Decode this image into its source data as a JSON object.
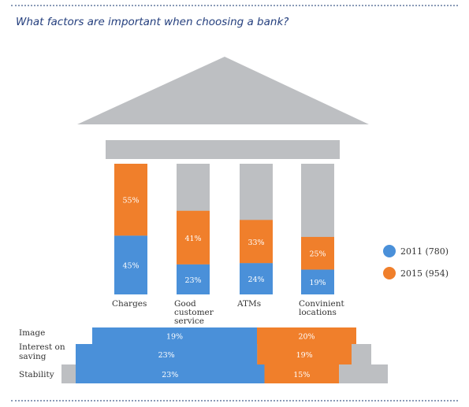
{
  "title": "What factors are important when choosing a bank?",
  "colors": {
    "series_2011": "#4a90d9",
    "series_2015": "#f07f2b",
    "gray": "#bdbfc2"
  },
  "legend": [
    {
      "label": "2011 (780)",
      "color": "#4a90d9"
    },
    {
      "label": "2015 (954)",
      "color": "#f07f2b"
    }
  ],
  "chart_data": {
    "type": "bar",
    "categories": [
      "Charges",
      "Good customer service",
      "ATMs",
      "Convinient locations",
      "Image",
      "Interest on saving",
      "Stability"
    ],
    "series": [
      {
        "name": "2011 (780)",
        "values": [
          45,
          23,
          24,
          19,
          19,
          23,
          23
        ]
      },
      {
        "name": "2015 (954)",
        "values": [
          55,
          41,
          33,
          25,
          20,
          19,
          15
        ]
      }
    ],
    "columns": [
      {
        "label_lines": [
          "Charges"
        ],
        "v2011": 45,
        "v2015": 55
      },
      {
        "label_lines": [
          "Good",
          "customer",
          "service"
        ],
        "v2011": 23,
        "v2015": 41
      },
      {
        "label_lines": [
          "ATMs"
        ],
        "v2011": 24,
        "v2015": 33
      },
      {
        "label_lines": [
          "Convinient",
          "locations"
        ],
        "v2011": 19,
        "v2015": 25
      }
    ],
    "steps": [
      {
        "label_lines": [
          "Image"
        ],
        "v2011": 19,
        "v2015": 20
      },
      {
        "label_lines": [
          "Interest on",
          "saving"
        ],
        "v2011": 23,
        "v2015": 19
      },
      {
        "label_lines": [
          "Stability"
        ],
        "v2011": 23,
        "v2015": 15
      }
    ],
    "value_max": 100,
    "unit": "%",
    "legend_position": "right"
  }
}
